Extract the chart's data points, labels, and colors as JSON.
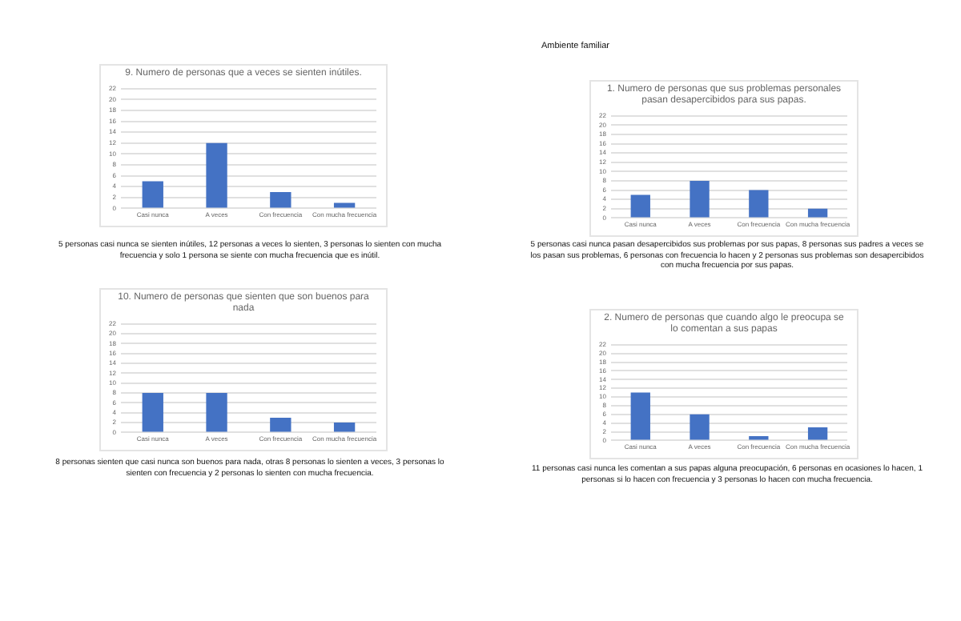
{
  "chart_data": [
    {
      "type": "bar",
      "title": "9. Numero de personas que a veces se sienten inútiles.",
      "categories": [
        "Casi nunca",
        "A veces",
        "Con frecuencia",
        "Con mucha frecuencia"
      ],
      "values": [
        5,
        12,
        3,
        1
      ],
      "color": "#4472c4",
      "ylim": [
        0,
        22
      ],
      "yticks": [
        0,
        2,
        4,
        6,
        8,
        10,
        12,
        14,
        16,
        18,
        20,
        22
      ],
      "grid": "y",
      "annotations": [
        "5 personas casi nunca se sienten inútiles, 12 personas a veces lo sienten, 3 personas lo sienten con mucha frecuencia y solo 1 persona se siente con mucha frecuencia que es inútil."
      ]
    },
    {
      "type": "bar",
      "title": "10. Numero de personas que sienten que son buenos para nada",
      "categories": [
        "Casi nunca",
        "A veces",
        "Con frecuencia",
        "Con mucha frecuencia"
      ],
      "values": [
        8,
        8,
        3,
        2
      ],
      "color": "#4472c4",
      "ylim": [
        0,
        22
      ],
      "yticks": [
        0,
        2,
        4,
        6,
        8,
        10,
        12,
        14,
        16,
        18,
        20,
        22
      ],
      "grid": "y",
      "annotations": [
        "8 personas sienten que casi nunca son buenos para nada, otras 8 personas lo sienten a veces, 3 personas lo sienten con frecuencia y 2 personas lo sienten con mucha frecuencia."
      ]
    },
    {
      "type": "bar",
      "title": "1. Numero de personas que sus problemas personales pasan desapercibidos para sus papas.",
      "categories": [
        "Casi nunca",
        "A veces",
        "Con frecuencia",
        "Con mucha frecuencia"
      ],
      "values": [
        5,
        8,
        6,
        2
      ],
      "color": "#4472c4",
      "ylim": [
        0,
        22
      ],
      "yticks": [
        0,
        2,
        4,
        6,
        8,
        10,
        12,
        14,
        16,
        18,
        20,
        22
      ],
      "grid": "y",
      "annotations": [
        "Ambiente familiar",
        "5 personas casi nunca pasan desapercibidos sus problemas por sus papas, 8 personas sus padres a veces se los pasan sus problemas, 6 personas con frecuencia lo hacen y 2 personas sus problemas son desapercibidos con mucha frecuencia por sus papas."
      ]
    },
    {
      "type": "bar",
      "title": "2. Numero de personas que cuando algo le preocupa se lo comentan a sus papas",
      "categories": [
        "Casi nunca",
        "A veces",
        "Con frecuencia",
        "Con mucha frecuencia"
      ],
      "values": [
        11,
        6,
        1,
        3
      ],
      "color": "#4472c4",
      "ylim": [
        0,
        22
      ],
      "yticks": [
        0,
        2,
        4,
        6,
        8,
        10,
        12,
        14,
        16,
        18,
        20,
        22
      ],
      "grid": "y",
      "annotations": [
        "11 personas casi nunca les comentan a sus papas alguna preocupación, 6 personas en ocasiones lo hacen, 1 personas si lo hacen con frecuencia y 3 personas lo hacen con mucha frecuencia."
      ]
    }
  ]
}
